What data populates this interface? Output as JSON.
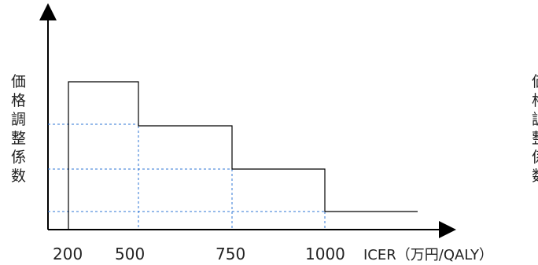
{
  "diagram": {
    "x_axis": {
      "tick_labels": [
        "200",
        "500",
        "750",
        "1000"
      ],
      "label": "ICER（万円/QALY）"
    },
    "y_axis": {
      "label": "価格調整係数"
    },
    "right_label_partial": "価格調整係数",
    "colors": {
      "axis": "#000000",
      "step_line": "#000000",
      "guide_line": "#2e75d6"
    }
  }
}
